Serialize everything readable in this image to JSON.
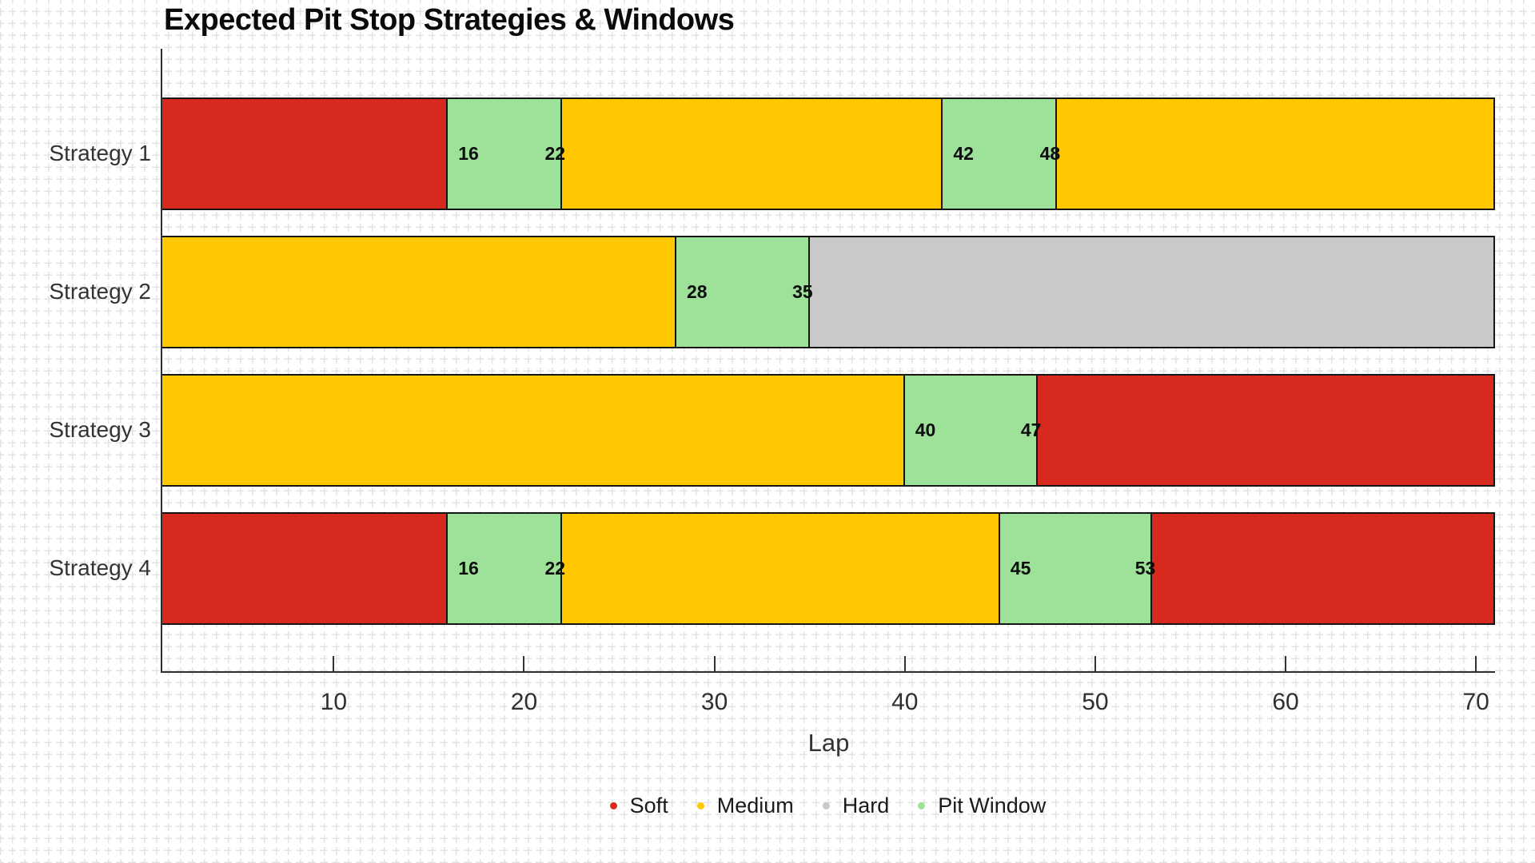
{
  "title": "Expected Pit Stop Strategies & Windows",
  "x_axis": {
    "label": "Lap",
    "ticks": [
      10,
      20,
      30,
      40,
      50,
      60,
      70
    ],
    "min": 1,
    "max": 71
  },
  "legend": [
    {
      "name": "Soft",
      "color": "#d7291d"
    },
    {
      "name": "Medium",
      "color": "#ffc800"
    },
    {
      "name": "Hard",
      "color": "#c9c9c9"
    },
    {
      "name": "Pit Window",
      "color": "#9ee29a"
    }
  ],
  "chart_data": {
    "type": "bar",
    "orientation": "horizontal-stacked",
    "title": "Expected Pit Stop Strategies & Windows",
    "xlabel": "Lap",
    "xlim": [
      1,
      71
    ],
    "grid": "graph-paper background",
    "legend_position": "bottom-center",
    "categories": [
      "Strategy 1",
      "Strategy 2",
      "Strategy 3",
      "Strategy 4"
    ],
    "colors": {
      "Soft": "#d7291d",
      "Medium": "#ffc800",
      "Hard": "#c9c9c9",
      "Pit Window": "#9ee29a"
    },
    "strategies": [
      {
        "label": "Strategy 1",
        "segments": [
          {
            "type": "Soft",
            "start": 1,
            "end": 16
          },
          {
            "type": "Pit Window",
            "start": 16,
            "end": 22,
            "labels": [
              "16",
              "22"
            ]
          },
          {
            "type": "Medium",
            "start": 22,
            "end": 42
          },
          {
            "type": "Pit Window",
            "start": 42,
            "end": 48,
            "labels": [
              "42",
              "48"
            ]
          },
          {
            "type": "Medium",
            "start": 48,
            "end": 71
          }
        ]
      },
      {
        "label": "Strategy 2",
        "segments": [
          {
            "type": "Medium",
            "start": 1,
            "end": 28
          },
          {
            "type": "Pit Window",
            "start": 28,
            "end": 35,
            "labels": [
              "28",
              "35"
            ]
          },
          {
            "type": "Hard",
            "start": 35,
            "end": 71
          }
        ]
      },
      {
        "label": "Strategy 3",
        "segments": [
          {
            "type": "Medium",
            "start": 1,
            "end": 40
          },
          {
            "type": "Pit Window",
            "start": 40,
            "end": 47,
            "labels": [
              "40",
              "47"
            ]
          },
          {
            "type": "Soft",
            "start": 47,
            "end": 71
          }
        ]
      },
      {
        "label": "Strategy 4",
        "segments": [
          {
            "type": "Soft",
            "start": 1,
            "end": 16
          },
          {
            "type": "Pit Window",
            "start": 16,
            "end": 22,
            "labels": [
              "16",
              "22"
            ]
          },
          {
            "type": "Medium",
            "start": 22,
            "end": 45
          },
          {
            "type": "Pit Window",
            "start": 45,
            "end": 53,
            "labels": [
              "45",
              "53"
            ]
          },
          {
            "type": "Soft",
            "start": 53,
            "end": 71
          }
        ]
      }
    ]
  }
}
